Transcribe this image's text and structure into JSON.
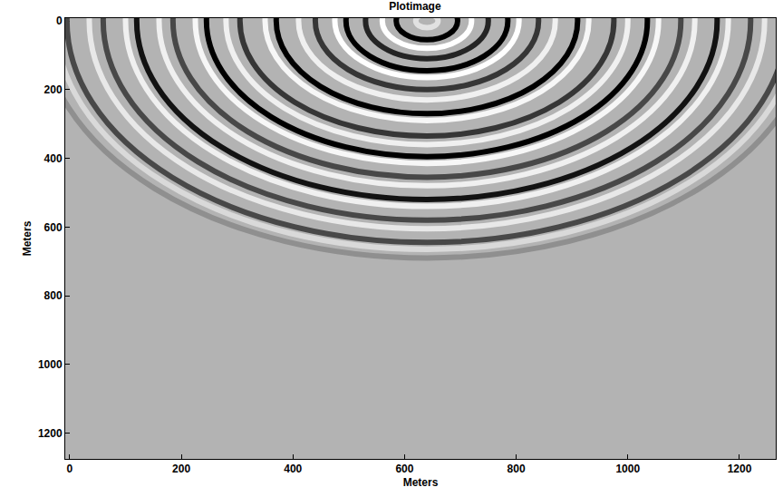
{
  "chart_data": {
    "type": "wavefield",
    "title": "Plotimage",
    "x_label": "Meters",
    "y_label": "Meters",
    "xlim": [
      -8,
      1265
    ],
    "ylim": [
      1275,
      -8
    ],
    "xticks": [
      0,
      200,
      400,
      600,
      800,
      1000,
      1200
    ],
    "yticks": [
      0,
      200,
      400,
      600,
      800,
      1000,
      1200
    ],
    "grid": false,
    "source": [
      640,
      0
    ],
    "wavefronts": [
      {
        "radius": 690,
        "amplitude": -0.2
      },
      {
        "radius": 665,
        "amplitude": 0.5
      },
      {
        "radius": 645,
        "amplitude": -0.6
      },
      {
        "radius": 605,
        "amplitude": 0.7
      },
      {
        "radius": 580,
        "amplitude": -0.6
      },
      {
        "radius": 540,
        "amplitude": 0.8
      },
      {
        "radius": 520,
        "amplitude": -0.9
      },
      {
        "radius": 480,
        "amplitude": 0.8
      },
      {
        "radius": 455,
        "amplitude": -0.6
      },
      {
        "radius": 415,
        "amplitude": 0.9
      },
      {
        "radius": 395,
        "amplitude": -1
      },
      {
        "radius": 360,
        "amplitude": 0.8
      },
      {
        "radius": 335,
        "amplitude": -0.7
      },
      {
        "radius": 290,
        "amplitude": 0.9
      },
      {
        "radius": 270,
        "amplitude": -1
      },
      {
        "radius": 230,
        "amplitude": 0.8
      },
      {
        "radius": 200,
        "amplitude": -0.7
      },
      {
        "radius": 165,
        "amplitude": 1
      },
      {
        "radius": 145,
        "amplitude": -1
      },
      {
        "radius": 110,
        "amplitude": -0.8
      },
      {
        "radius": 80,
        "amplitude": 1
      },
      {
        "radius": 55,
        "amplitude": -1
      },
      {
        "radius": 20,
        "amplitude": 0.6
      }
    ]
  }
}
